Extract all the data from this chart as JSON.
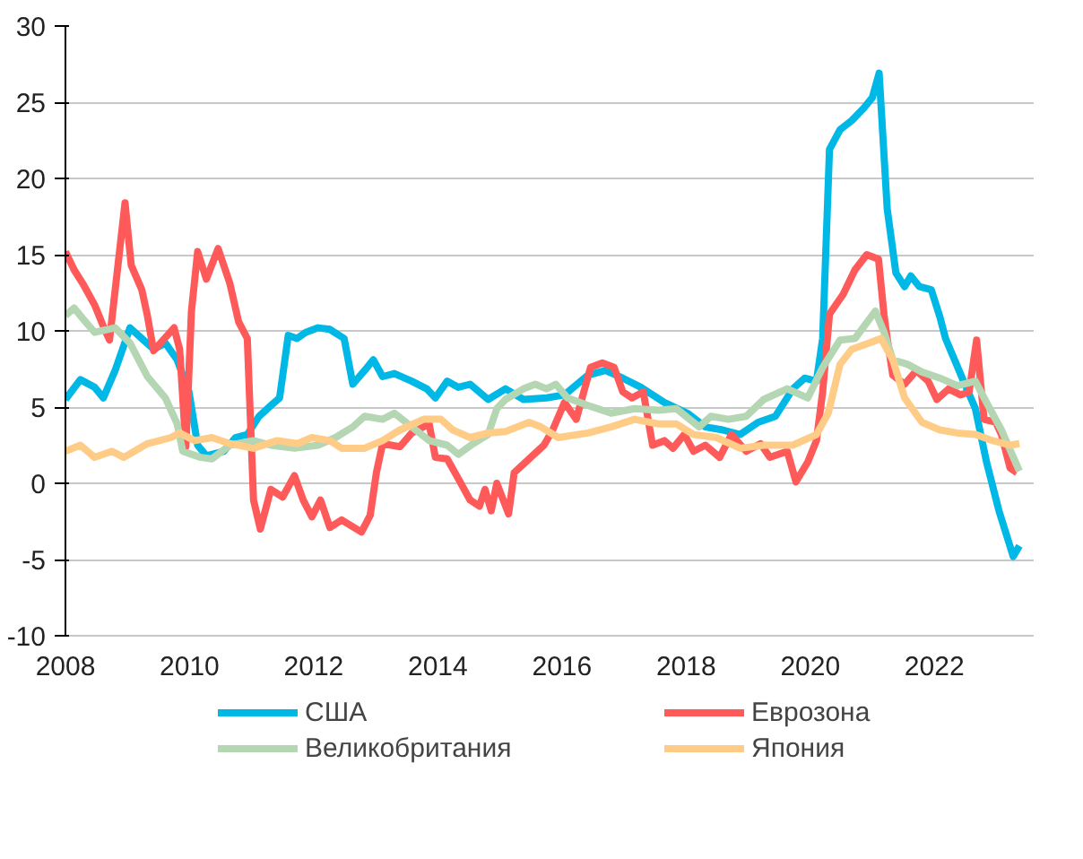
{
  "chart_data": {
    "type": "line",
    "xlim": [
      2008,
      2023.6
    ],
    "xticks": [
      2008,
      2010,
      2012,
      2014,
      2016,
      2018,
      2020,
      2022
    ],
    "ylim": [
      -10,
      30
    ],
    "yticks": [
      -10,
      -5,
      0,
      5,
      10,
      15,
      20,
      25,
      30
    ],
    "grid": "y",
    "legend": "bottom",
    "line_style": "solid",
    "marker": "none",
    "series": [
      {
        "name": "США",
        "color": "#00b8e6",
        "x": [
          2008.0,
          2008.24,
          2008.47,
          2008.61,
          2008.8,
          2009.04,
          2009.23,
          2009.42,
          2009.61,
          2009.8,
          2009.99,
          2010.13,
          2010.27,
          2010.55,
          2010.74,
          2010.93,
          2011.12,
          2011.31,
          2011.45,
          2011.59,
          2011.73,
          2011.87,
          2012.07,
          2012.26,
          2012.49,
          2012.63,
          2012.82,
          2012.96,
          2013.11,
          2013.3,
          2013.58,
          2013.82,
          2013.96,
          2014.15,
          2014.33,
          2014.52,
          2014.81,
          2015.09,
          2015.38,
          2015.75,
          2016.04,
          2016.42,
          2016.7,
          2016.98,
          2017.27,
          2017.65,
          2018.02,
          2018.31,
          2018.59,
          2018.87,
          2019.16,
          2019.44,
          2019.72,
          2019.91,
          2020.1,
          2020.2,
          2020.31,
          2020.48,
          2020.67,
          2020.86,
          2021.0,
          2021.11,
          2021.24,
          2021.38,
          2021.52,
          2021.62,
          2021.76,
          2021.95,
          2022.09,
          2022.18,
          2022.47,
          2022.66,
          2022.84,
          2023.04,
          2023.27,
          2023.37
        ],
        "values": [
          5.5,
          6.8,
          6.3,
          5.6,
          7.4,
          10.2,
          9.5,
          8.8,
          9.2,
          8.1,
          6.0,
          2.5,
          1.8,
          2.1,
          3.0,
          3.2,
          4.4,
          5.1,
          5.6,
          9.7,
          9.5,
          9.9,
          10.2,
          10.1,
          9.5,
          6.5,
          7.4,
          8.1,
          7.0,
          7.2,
          6.7,
          6.2,
          5.6,
          6.7,
          6.3,
          6.5,
          5.5,
          6.2,
          5.5,
          5.6,
          5.8,
          7.1,
          7.4,
          6.9,
          6.3,
          5.3,
          4.6,
          3.7,
          3.5,
          3.2,
          4.0,
          4.4,
          6.2,
          6.9,
          6.7,
          9.5,
          21.9,
          23.2,
          23.8,
          24.6,
          25.3,
          26.9,
          18.0,
          13.8,
          12.9,
          13.6,
          12.9,
          12.7,
          10.9,
          9.5,
          6.7,
          4.9,
          1.4,
          -1.8,
          -4.8,
          -4.1
        ]
      },
      {
        "name": "Еврозона",
        "color": "#ff5a5a",
        "x": [
          2008.0,
          2008.14,
          2008.28,
          2008.47,
          2008.62,
          2008.71,
          2008.96,
          2009.06,
          2009.23,
          2009.32,
          2009.42,
          2009.75,
          2009.84,
          2009.94,
          2010.03,
          2010.13,
          2010.27,
          2010.46,
          2010.65,
          2010.79,
          2010.93,
          2011.03,
          2011.14,
          2011.31,
          2011.5,
          2011.69,
          2011.83,
          2011.97,
          2012.11,
          2012.26,
          2012.45,
          2012.77,
          2012.91,
          2013.01,
          2013.11,
          2013.39,
          2013.58,
          2013.86,
          2013.96,
          2014.15,
          2014.33,
          2014.52,
          2014.67,
          2014.76,
          2014.86,
          2014.95,
          2015.14,
          2015.23,
          2015.47,
          2015.71,
          2015.85,
          2016.04,
          2016.23,
          2016.46,
          2016.65,
          2016.84,
          2016.98,
          2017.13,
          2017.31,
          2017.46,
          2017.65,
          2017.79,
          2017.97,
          2018.12,
          2018.31,
          2018.54,
          2018.73,
          2018.97,
          2019.2,
          2019.35,
          2019.63,
          2019.77,
          2019.96,
          2020.1,
          2020.2,
          2020.31,
          2020.53,
          2020.72,
          2020.91,
          2021.1,
          2021.19,
          2021.24,
          2021.33,
          2021.52,
          2021.71,
          2021.9,
          2022.04,
          2022.23,
          2022.42,
          2022.56,
          2022.68,
          2022.8,
          2022.99,
          2023.08,
          2023.22,
          2023.33
        ],
        "values": [
          15.2,
          14.0,
          13.1,
          11.7,
          10.2,
          9.4,
          18.4,
          14.3,
          12.7,
          11.0,
          8.7,
          10.2,
          8.8,
          2.4,
          11.3,
          15.2,
          13.4,
          15.4,
          13.1,
          10.6,
          9.5,
          -1.1,
          -3.0,
          -0.4,
          -0.9,
          0.5,
          -1.1,
          -2.2,
          -1.1,
          -2.9,
          -2.4,
          -3.2,
          -2.1,
          0.7,
          2.6,
          2.4,
          3.3,
          3.9,
          1.7,
          1.6,
          0.3,
          -1.1,
          -1.5,
          -0.4,
          -1.8,
          0.0,
          -2.0,
          0.7,
          1.6,
          2.5,
          3.5,
          5.3,
          4.2,
          7.6,
          7.9,
          7.6,
          6.0,
          5.6,
          6.0,
          2.5,
          2.8,
          2.3,
          3.2,
          2.1,
          2.5,
          1.7,
          3.2,
          2.1,
          2.6,
          1.7,
          2.1,
          0.1,
          1.4,
          2.8,
          6.0,
          11.1,
          12.4,
          14.0,
          15.0,
          14.7,
          11.0,
          9.5,
          7.1,
          6.5,
          7.4,
          6.7,
          5.5,
          6.2,
          5.8,
          6.0,
          9.4,
          4.2,
          4.0,
          3.2,
          1.0,
          0.7
        ]
      },
      {
        "name": "Великобритания",
        "color": "#b5d6b2",
        "x": [
          2008.0,
          2008.14,
          2008.28,
          2008.47,
          2008.8,
          2009.04,
          2009.32,
          2009.61,
          2009.8,
          2009.89,
          2010.18,
          2010.36,
          2010.65,
          2011.03,
          2011.31,
          2011.69,
          2012.07,
          2012.35,
          2012.63,
          2012.82,
          2013.11,
          2013.3,
          2013.58,
          2013.86,
          2014.15,
          2014.33,
          2014.57,
          2014.81,
          2014.95,
          2015.09,
          2015.38,
          2015.57,
          2015.75,
          2015.9,
          2016.09,
          2016.42,
          2016.79,
          2017.17,
          2017.55,
          2017.84,
          2018.21,
          2018.4,
          2018.68,
          2018.97,
          2019.25,
          2019.63,
          2019.96,
          2020.2,
          2020.48,
          2020.72,
          2021.05,
          2021.19,
          2021.33,
          2021.57,
          2021.8,
          2022.09,
          2022.37,
          2022.66,
          2022.84,
          2023.08,
          2023.37
        ],
        "values": [
          11.0,
          11.5,
          10.8,
          9.9,
          10.2,
          9.2,
          7.0,
          5.6,
          3.9,
          2.1,
          1.7,
          1.6,
          2.5,
          2.8,
          2.5,
          2.3,
          2.5,
          3.0,
          3.7,
          4.4,
          4.2,
          4.6,
          3.7,
          2.8,
          2.5,
          1.9,
          2.6,
          3.2,
          4.9,
          5.5,
          6.2,
          6.5,
          6.2,
          6.5,
          5.6,
          5.1,
          4.6,
          4.9,
          4.8,
          4.9,
          3.7,
          4.4,
          4.2,
          4.4,
          5.5,
          6.2,
          5.6,
          7.6,
          9.4,
          9.5,
          11.3,
          9.9,
          8.1,
          7.8,
          7.3,
          6.9,
          6.4,
          6.7,
          5.3,
          3.5,
          0.8
        ]
      },
      {
        "name": "Япония",
        "color": "#ffcc88",
        "x": [
          2008.0,
          2008.24,
          2008.47,
          2008.75,
          2008.94,
          2009.32,
          2009.7,
          2009.84,
          2010.08,
          2010.36,
          2010.65,
          2011.03,
          2011.41,
          2011.74,
          2011.97,
          2012.26,
          2012.45,
          2012.82,
          2013.11,
          2013.39,
          2013.77,
          2014.05,
          2014.24,
          2014.52,
          2014.81,
          2015.09,
          2015.47,
          2015.66,
          2015.94,
          2016.42,
          2016.79,
          2017.17,
          2017.55,
          2017.84,
          2018.12,
          2018.49,
          2018.87,
          2019.25,
          2019.72,
          2020.1,
          2020.29,
          2020.48,
          2020.67,
          2020.95,
          2021.14,
          2021.33,
          2021.52,
          2021.8,
          2022.09,
          2022.37,
          2022.66,
          2022.94,
          2023.22,
          2023.37
        ],
        "values": [
          2.1,
          2.5,
          1.7,
          2.1,
          1.7,
          2.6,
          3.0,
          3.3,
          2.8,
          3.0,
          2.6,
          2.3,
          2.8,
          2.6,
          3.0,
          2.8,
          2.3,
          2.3,
          2.8,
          3.5,
          4.2,
          4.2,
          3.5,
          3.0,
          3.3,
          3.4,
          4.0,
          3.7,
          3.0,
          3.3,
          3.7,
          4.2,
          3.9,
          3.9,
          3.2,
          3.0,
          2.3,
          2.5,
          2.5,
          3.2,
          4.6,
          7.8,
          8.8,
          9.2,
          9.5,
          8.1,
          5.6,
          4.0,
          3.5,
          3.3,
          3.2,
          2.8,
          2.5,
          2.6
        ]
      }
    ]
  }
}
